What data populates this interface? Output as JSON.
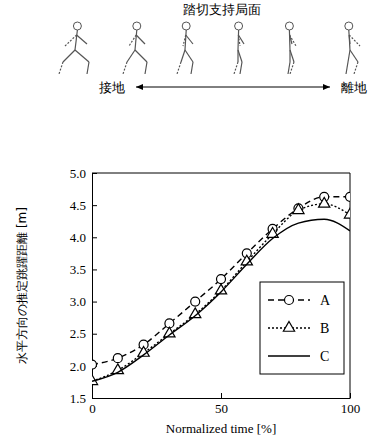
{
  "chart_data": {
    "type": "line",
    "title": "踏切支持局面",
    "annotations": [
      "接地",
      "離地"
    ],
    "x_label": "Normalized time [%]",
    "y_label": "水平方向の推定跳躍距離 [m]",
    "x": [
      0,
      10,
      20,
      30,
      40,
      50,
      60,
      70,
      80,
      90,
      100
    ],
    "series": [
      {
        "name": "A",
        "color": "#000000",
        "line_style": "dashed",
        "marker": "circle",
        "values": [
          2.02,
          2.12,
          2.33,
          2.66,
          3.0,
          3.35,
          3.75,
          4.13,
          4.45,
          4.63,
          4.63
        ]
      },
      {
        "name": "B",
        "color": "#000000",
        "line_style": "dotted",
        "marker": "triangle",
        "values": [
          1.76,
          1.93,
          2.2,
          2.5,
          2.8,
          3.17,
          3.62,
          4.05,
          4.42,
          4.52,
          4.35
        ]
      },
      {
        "name": "C",
        "color": "#000000",
        "line_style": "solid",
        "marker": "none",
        "values": [
          1.76,
          1.9,
          2.17,
          2.48,
          2.78,
          3.15,
          3.58,
          3.98,
          4.22,
          4.28,
          4.1
        ]
      }
    ],
    "xlim": [
      0,
      100
    ],
    "xticks": [
      0,
      50,
      100
    ],
    "ylim": [
      1.5,
      5
    ],
    "yticks": [
      1.5,
      {
        "value": 2,
        "label": "2.0"
      },
      2.5,
      {
        "value": 3,
        "label": "3.0"
      },
      3.5,
      {
        "value": 4,
        "label": "4.0"
      },
      4.5,
      {
        "value": 5,
        "label": "5.0"
      }
    ],
    "grid": false,
    "legend": "lower right"
  }
}
